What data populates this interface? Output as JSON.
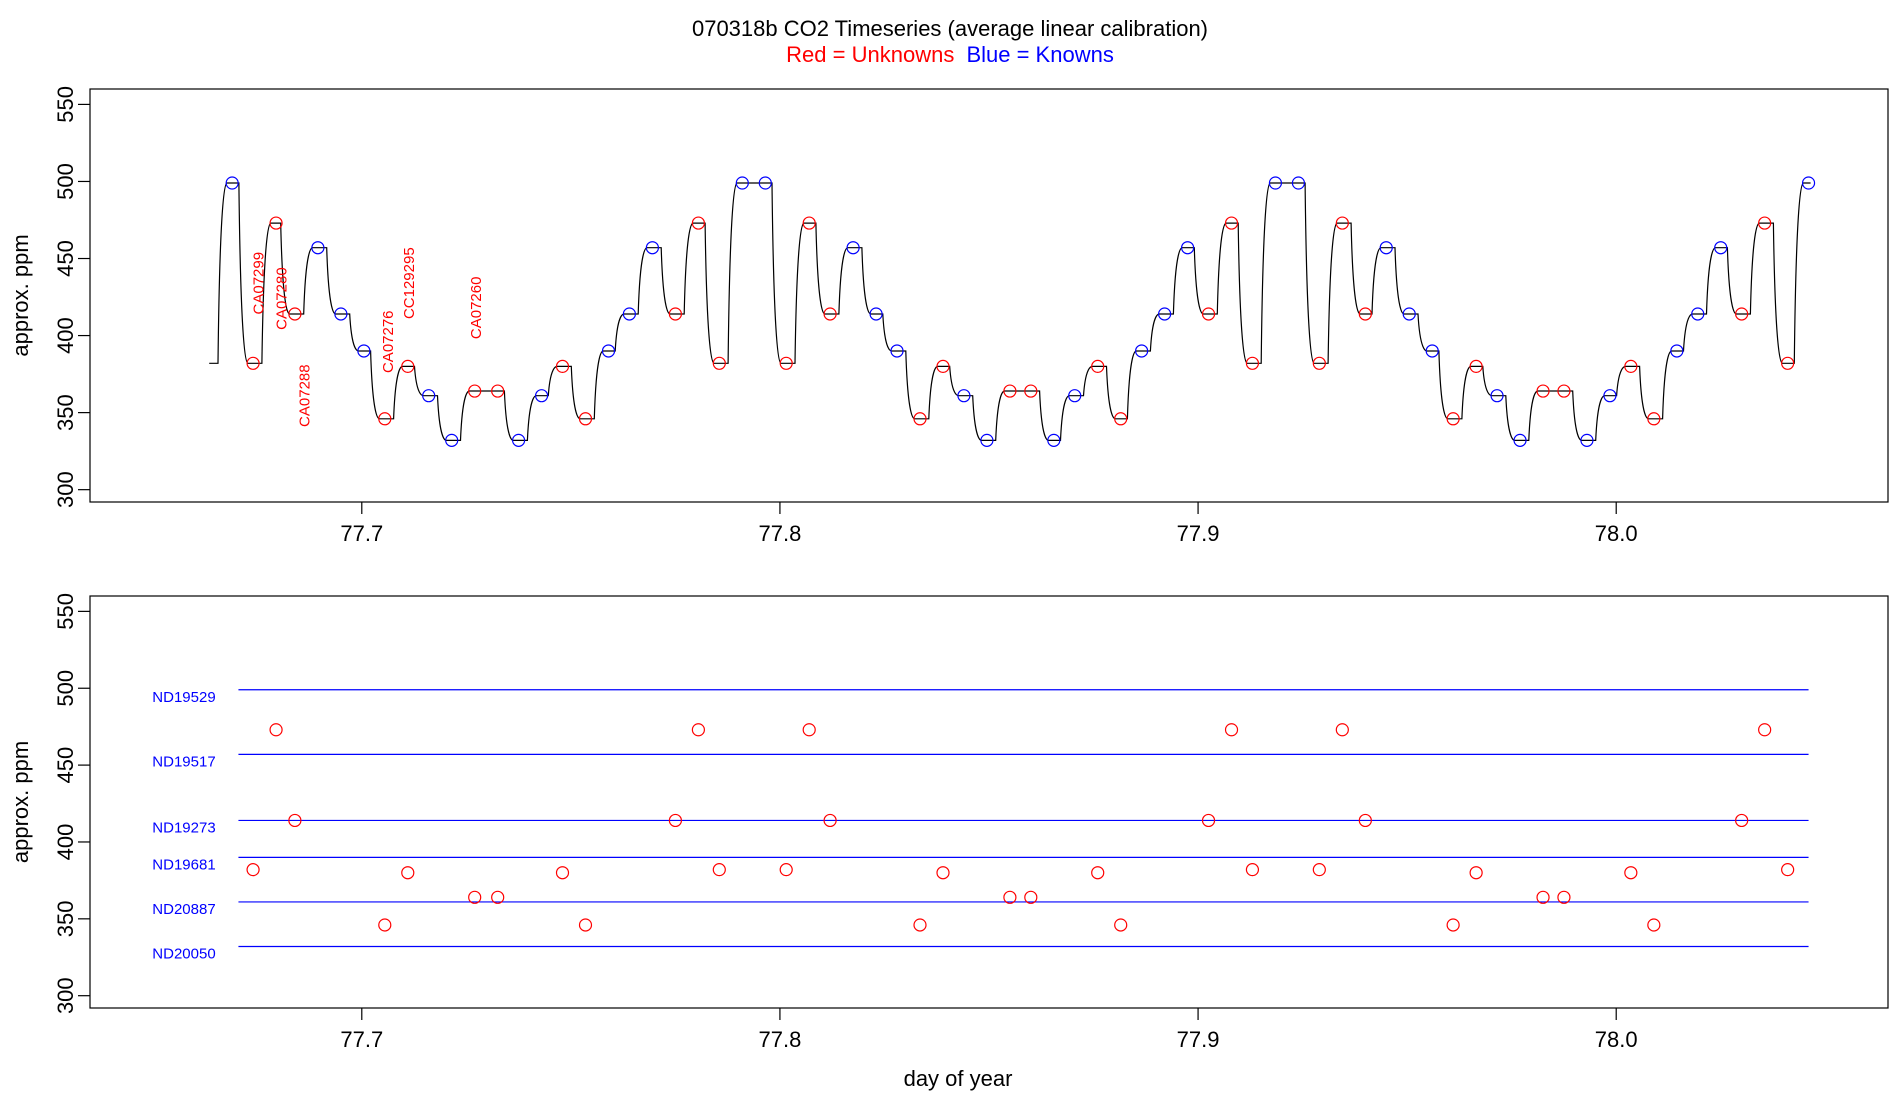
{
  "chart_data": {
    "type": "scatter",
    "title": "070318b   CO2 Timeseries (average linear calibration)",
    "subtitle": [
      {
        "text": "Red = Unknowns",
        "color": "#ff0000"
      },
      {
        "text": "Blue = Knowns",
        "color": "#0000ff"
      }
    ],
    "xlabel": "day of year",
    "ylabel": "approx. ppm",
    "xlim": [
      77.635,
      78.065
    ],
    "ylim": [
      292,
      560
    ],
    "xticks": [
      "77.7",
      "77.8",
      "77.9",
      "78.0"
    ],
    "yticks": [
      "300",
      "350",
      "400",
      "450",
      "500",
      "550"
    ],
    "colors": {
      "unknown": "#ff0000",
      "known": "#0000ff",
      "trace": "#000000"
    },
    "panels": [
      {
        "name": "timeseries",
        "trace_start": {
          "x": 77.6635,
          "y": 382
        },
        "points": [
          {
            "x": 77.669,
            "y": 499,
            "k": "known"
          },
          {
            "x": 77.674,
            "y": 382,
            "k": "unknown"
          },
          {
            "x": 77.6795,
            "y": 473,
            "k": "unknown"
          },
          {
            "x": 77.684,
            "y": 414,
            "k": "unknown"
          },
          {
            "x": 77.6895,
            "y": 457,
            "k": "known"
          },
          {
            "x": 77.695,
            "y": 414,
            "k": "known"
          },
          {
            "x": 77.7005,
            "y": 390,
            "k": "known"
          },
          {
            "x": 77.7055,
            "y": 346,
            "k": "unknown"
          },
          {
            "x": 77.711,
            "y": 380,
            "k": "unknown"
          },
          {
            "x": 77.716,
            "y": 361,
            "k": "known"
          },
          {
            "x": 77.7215,
            "y": 332,
            "k": "known"
          },
          {
            "x": 77.727,
            "y": 364,
            "k": "unknown"
          },
          {
            "x": 77.7325,
            "y": 364,
            "k": "unknown"
          },
          {
            "x": 77.7375,
            "y": 332,
            "k": "known"
          },
          {
            "x": 77.743,
            "y": 361,
            "k": "known"
          },
          {
            "x": 77.748,
            "y": 380,
            "k": "unknown"
          },
          {
            "x": 77.7535,
            "y": 346,
            "k": "unknown"
          },
          {
            "x": 77.759,
            "y": 390,
            "k": "known"
          },
          {
            "x": 77.764,
            "y": 414,
            "k": "known"
          },
          {
            "x": 77.7695,
            "y": 457,
            "k": "known"
          },
          {
            "x": 77.775,
            "y": 414,
            "k": "unknown"
          },
          {
            "x": 77.7805,
            "y": 473,
            "k": "unknown"
          },
          {
            "x": 77.7855,
            "y": 382,
            "k": "unknown"
          },
          {
            "x": 77.791,
            "y": 499,
            "k": "known"
          },
          {
            "x": 77.7965,
            "y": 499,
            "k": "known"
          },
          {
            "x": 77.8015,
            "y": 382,
            "k": "unknown"
          },
          {
            "x": 77.807,
            "y": 473,
            "k": "unknown"
          },
          {
            "x": 77.812,
            "y": 414,
            "k": "unknown"
          },
          {
            "x": 77.8175,
            "y": 457,
            "k": "known"
          },
          {
            "x": 77.823,
            "y": 414,
            "k": "known"
          },
          {
            "x": 77.828,
            "y": 390,
            "k": "known"
          },
          {
            "x": 77.8335,
            "y": 346,
            "k": "unknown"
          },
          {
            "x": 77.839,
            "y": 380,
            "k": "unknown"
          },
          {
            "x": 77.844,
            "y": 361,
            "k": "known"
          },
          {
            "x": 77.8495,
            "y": 332,
            "k": "known"
          },
          {
            "x": 77.855,
            "y": 364,
            "k": "unknown"
          },
          {
            "x": 77.86,
            "y": 364,
            "k": "unknown"
          },
          {
            "x": 77.8655,
            "y": 332,
            "k": "known"
          },
          {
            "x": 77.8705,
            "y": 361,
            "k": "known"
          },
          {
            "x": 77.876,
            "y": 380,
            "k": "unknown"
          },
          {
            "x": 77.8815,
            "y": 346,
            "k": "unknown"
          },
          {
            "x": 77.8865,
            "y": 390,
            "k": "known"
          },
          {
            "x": 77.892,
            "y": 414,
            "k": "known"
          },
          {
            "x": 77.8975,
            "y": 457,
            "k": "known"
          },
          {
            "x": 77.9025,
            "y": 414,
            "k": "unknown"
          },
          {
            "x": 77.908,
            "y": 473,
            "k": "unknown"
          },
          {
            "x": 77.913,
            "y": 382,
            "k": "unknown"
          },
          {
            "x": 77.9185,
            "y": 499,
            "k": "known"
          },
          {
            "x": 77.924,
            "y": 499,
            "k": "known"
          },
          {
            "x": 77.929,
            "y": 382,
            "k": "unknown"
          },
          {
            "x": 77.9345,
            "y": 473,
            "k": "unknown"
          },
          {
            "x": 77.94,
            "y": 414,
            "k": "unknown"
          },
          {
            "x": 77.945,
            "y": 457,
            "k": "known"
          },
          {
            "x": 77.9505,
            "y": 414,
            "k": "known"
          },
          {
            "x": 77.956,
            "y": 390,
            "k": "known"
          },
          {
            "x": 77.961,
            "y": 346,
            "k": "unknown"
          },
          {
            "x": 77.9665,
            "y": 380,
            "k": "unknown"
          },
          {
            "x": 77.9715,
            "y": 361,
            "k": "known"
          },
          {
            "x": 77.977,
            "y": 332,
            "k": "known"
          },
          {
            "x": 77.9825,
            "y": 364,
            "k": "unknown"
          },
          {
            "x": 77.9875,
            "y": 364,
            "k": "unknown"
          },
          {
            "x": 77.993,
            "y": 332,
            "k": "known"
          },
          {
            "x": 77.9985,
            "y": 361,
            "k": "known"
          },
          {
            "x": 78.0035,
            "y": 380,
            "k": "unknown"
          },
          {
            "x": 78.009,
            "y": 346,
            "k": "unknown"
          },
          {
            "x": 78.0145,
            "y": 390,
            "k": "known"
          },
          {
            "x": 78.0195,
            "y": 414,
            "k": "known"
          },
          {
            "x": 78.025,
            "y": 457,
            "k": "known"
          },
          {
            "x": 78.03,
            "y": 414,
            "k": "unknown"
          },
          {
            "x": 78.0355,
            "y": 473,
            "k": "unknown"
          },
          {
            "x": 78.041,
            "y": 382,
            "k": "unknown"
          },
          {
            "x": 78.046,
            "y": 499,
            "k": "known"
          }
        ],
        "labels": [
          {
            "text": "CA07299",
            "x": 77.6765,
            "y": 434
          },
          {
            "text": "CA07280",
            "x": 77.682,
            "y": 424
          },
          {
            "text": "CA07288",
            "x": 77.6875,
            "y": 361
          },
          {
            "text": "CA07276",
            "x": 77.7075,
            "y": 396
          },
          {
            "text": "CC129295",
            "x": 77.7125,
            "y": 434
          },
          {
            "text": "CA07260",
            "x": 77.7285,
            "y": 418
          }
        ]
      },
      {
        "name": "calibration",
        "reference_lines": [
          {
            "name": "ND19529",
            "y": 499
          },
          {
            "name": "ND19517",
            "y": 457
          },
          {
            "name": "ND19273",
            "y": 414
          },
          {
            "name": "ND19681",
            "y": 390
          },
          {
            "name": "ND20887",
            "y": 361
          },
          {
            "name": "ND20050",
            "y": 332
          }
        ],
        "line_x": [
          77.6705,
          78.046
        ]
      }
    ]
  }
}
